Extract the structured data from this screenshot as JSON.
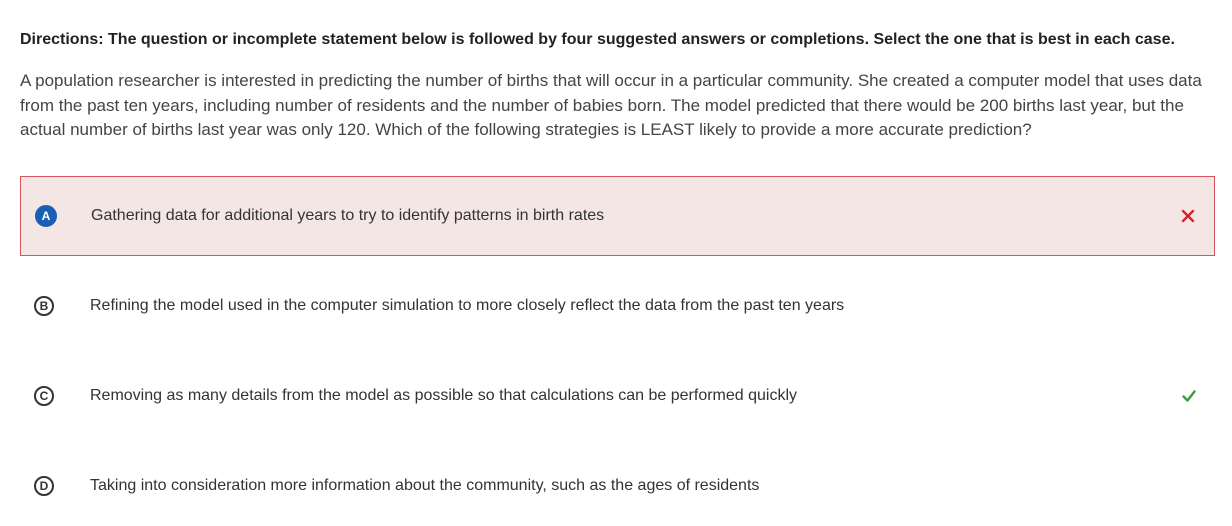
{
  "directions": "Directions: The question or incomplete statement below is followed by four suggested answers or completions. Select the one that is best in each case.",
  "question": "A population researcher is interested in predicting the number of births that will occur in a particular community. She created a computer model that uses data from the past ten years, including number of residents and the number of babies born. The model predicted that there would be 200 births last year, but the actual number of births last year was only 120. Which of the following strategies is LEAST likely to provide a more accurate prediction?",
  "options": [
    {
      "letter": "A",
      "text": "Gathering data for additional years to try to identify patterns in birth rates",
      "state": "selected-incorrect",
      "mark_icon": "x-icon"
    },
    {
      "letter": "B",
      "text": "Refining the model used in the computer simulation to more closely reflect the data from the past ten years",
      "state": "unselected"
    },
    {
      "letter": "C",
      "text": "Removing as many details from the model as possible so that calculations can be performed quickly",
      "state": "correct",
      "mark_icon": "check-icon"
    },
    {
      "letter": "D",
      "text": "Taking into consideration more information about the community, such as the ages of residents",
      "state": "unselected"
    }
  ],
  "colors": {
    "selected_bg": "#f5e6e6",
    "selected_border": "#d9535f",
    "selected_badge": "#1a5fb4",
    "incorrect_mark": "#d9232d",
    "correct_mark": "#3a9a3e"
  }
}
